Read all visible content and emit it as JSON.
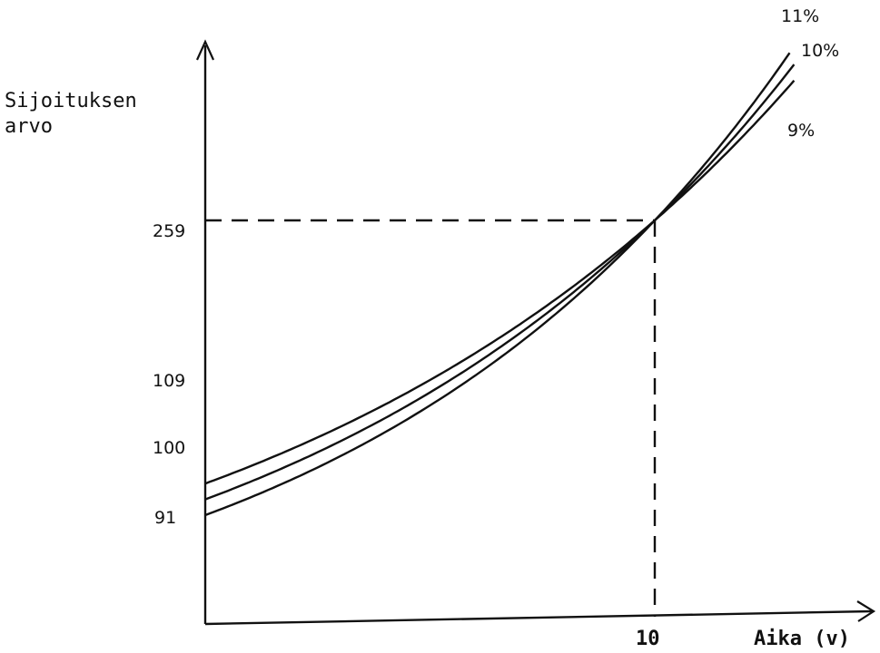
{
  "chart_data": {
    "type": "line",
    "ylabel": [
      "Sijoituksen",
      "arvo"
    ],
    "xlabel": "Aika (v)",
    "x_tick_labels": [
      "10"
    ],
    "y_tick_labels": [
      "259",
      "109",
      "100",
      "91"
    ],
    "x_range": [
      0,
      14.3
    ],
    "reference_point": {
      "x": 10,
      "y": 259
    },
    "series": [
      {
        "name": "9%",
        "start_value": 109,
        "value_at_10": 259,
        "end_x": 13.1
      },
      {
        "name": "10%",
        "start_value": 100,
        "value_at_10": 259,
        "end_x": 13.1
      },
      {
        "name": "11%",
        "start_value": 91,
        "value_at_10": 259,
        "end_x": 13.0
      }
    ]
  }
}
